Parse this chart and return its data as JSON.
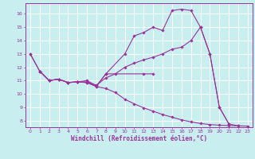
{
  "bg_color": "#c8eef0",
  "line_color": "#993399",
  "grid_color": "#ffffff",
  "xlabel": "Windchill (Refroidissement éolien,°C)",
  "xlabel_color": "#993399",
  "tick_color": "#993399",
  "xlim": [
    -0.5,
    23.5
  ],
  "ylim": [
    7.5,
    16.8
  ],
  "yticks": [
    8,
    9,
    10,
    11,
    12,
    13,
    14,
    15,
    16
  ],
  "xticks": [
    0,
    1,
    2,
    3,
    4,
    5,
    6,
    7,
    8,
    9,
    10,
    11,
    12,
    13,
    14,
    15,
    16,
    17,
    18,
    19,
    20,
    21,
    22,
    23
  ],
  "line1_x": [
    0,
    1,
    2,
    3,
    4,
    5,
    6,
    7,
    8,
    10,
    11,
    12,
    13,
    14,
    15,
    16,
    17,
    18,
    19,
    20,
    21
  ],
  "line1_y": [
    13.0,
    11.7,
    11.0,
    11.1,
    10.85,
    10.9,
    11.0,
    10.6,
    11.5,
    13.0,
    14.35,
    14.6,
    15.0,
    14.75,
    16.25,
    16.35,
    16.25,
    15.0,
    13.0,
    9.0,
    7.75
  ],
  "line2_x": [
    1,
    2,
    3,
    4,
    5,
    6,
    7,
    8,
    12,
    13
  ],
  "line2_y": [
    11.7,
    11.0,
    11.1,
    10.85,
    10.9,
    10.85,
    10.55,
    11.5,
    11.5,
    11.5
  ],
  "line3_x": [
    1,
    2,
    3,
    4,
    5,
    6,
    7,
    8,
    9,
    10,
    11,
    12,
    13,
    14,
    15,
    16,
    17,
    18,
    19,
    20,
    21,
    22,
    23
  ],
  "line3_y": [
    11.7,
    11.0,
    11.1,
    10.85,
    10.9,
    10.85,
    10.55,
    10.4,
    10.1,
    9.6,
    9.25,
    8.95,
    8.7,
    8.45,
    8.25,
    8.05,
    7.9,
    7.78,
    7.7,
    7.65,
    7.62,
    7.6,
    7.58
  ],
  "line4_x": [
    0,
    1,
    2,
    3,
    4,
    5,
    6,
    7,
    8,
    9,
    10,
    11,
    12,
    13,
    14,
    15,
    16,
    17,
    18,
    19,
    20,
    21,
    22
  ],
  "line4_y": [
    13.0,
    11.7,
    11.0,
    11.1,
    10.85,
    10.9,
    10.9,
    10.65,
    11.2,
    11.5,
    12.0,
    12.3,
    12.55,
    12.75,
    13.0,
    13.35,
    13.5,
    14.0,
    15.0,
    13.0,
    9.0,
    7.75,
    7.6
  ]
}
